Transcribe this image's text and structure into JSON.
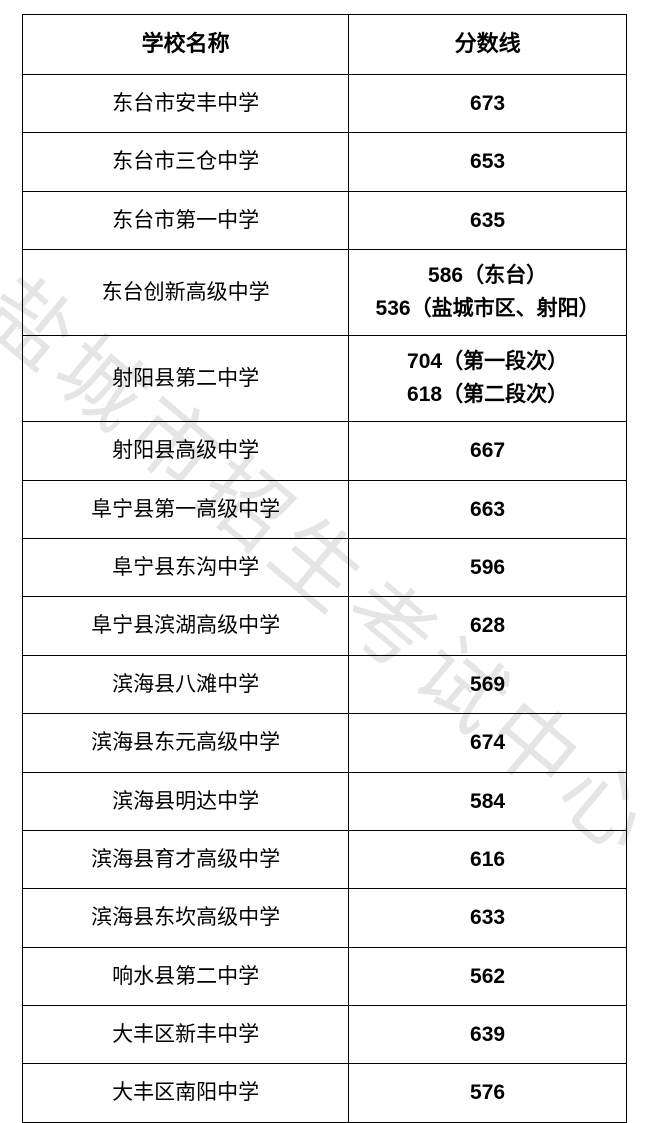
{
  "watermark_text": "盐城市招生考试中心",
  "table": {
    "columns": [
      {
        "key": "school",
        "label": "学校名称",
        "width_pct": 54,
        "align": "center"
      },
      {
        "key": "score",
        "label": "分数线",
        "width_pct": 46,
        "align": "center"
      }
    ],
    "header_fontsize": 22,
    "cell_fontsize": 21,
    "border_color": "#000000",
    "background_color": "#ffffff",
    "text_color": "#000000",
    "rows": [
      {
        "school": "东台市安丰中学",
        "score": "673"
      },
      {
        "school": "东台市三仓中学",
        "score": "653"
      },
      {
        "school": "东台市第一中学",
        "score": "635"
      },
      {
        "school": "东台创新高级中学",
        "score_lines": [
          "586（东台）",
          "536（盐城市区、射阳）"
        ]
      },
      {
        "school": "射阳县第二中学",
        "score_lines": [
          "704（第一段次）",
          "618（第二段次）"
        ]
      },
      {
        "school": "射阳县高级中学",
        "score": "667"
      },
      {
        "school": "阜宁县第一高级中学",
        "score": "663"
      },
      {
        "school": "阜宁县东沟中学",
        "score": "596"
      },
      {
        "school": "阜宁县滨湖高级中学",
        "score": "628"
      },
      {
        "school": "滨海县八滩中学",
        "score": "569"
      },
      {
        "school": "滨海县东元高级中学",
        "score": "674"
      },
      {
        "school": "滨海县明达中学",
        "score": "584"
      },
      {
        "school": "滨海县育才高级中学",
        "score": "616"
      },
      {
        "school": "滨海县东坎高级中学",
        "score": "633"
      },
      {
        "school": "响水县第二中学",
        "score": "562"
      },
      {
        "school": "大丰区新丰中学",
        "score": "639"
      },
      {
        "school": "大丰区南阳中学",
        "score": "576"
      }
    ]
  }
}
